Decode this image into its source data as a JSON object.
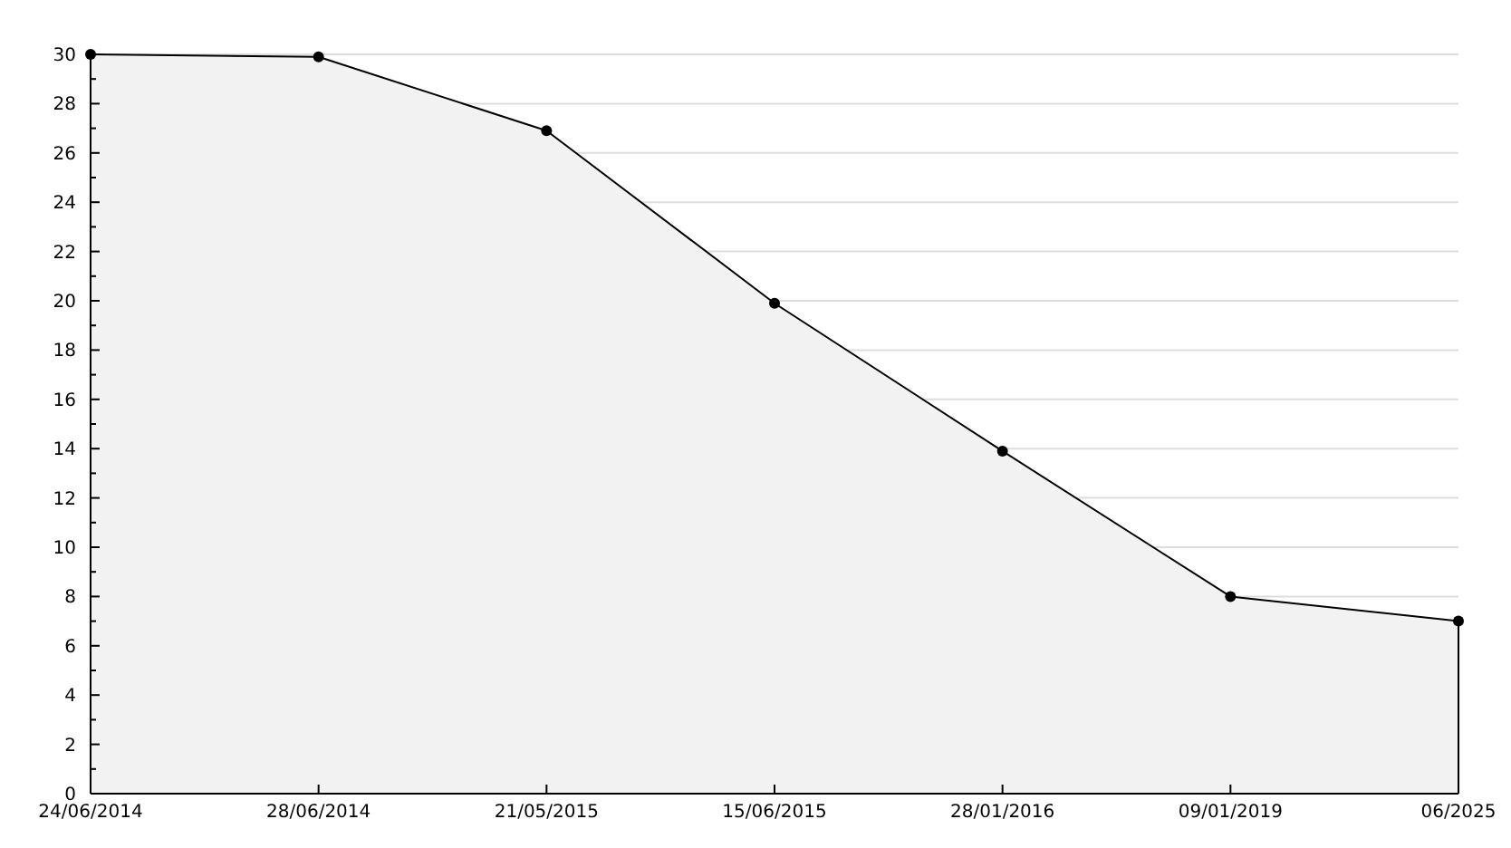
{
  "chart_data": {
    "type": "area",
    "categories": [
      "24/06/2014",
      "28/06/2014",
      "21/05/2015",
      "15/06/2015",
      "28/01/2016",
      "09/01/2019",
      "06/2025"
    ],
    "series": [
      {
        "color": "#000000",
        "values": [
          30,
          29.9,
          26.9,
          19.9,
          13.9,
          8,
          7
        ]
      }
    ],
    "ylim": [
      0,
      30
    ],
    "yticks": [
      0,
      {
        "value": 1,
        "label": null
      },
      2,
      {
        "value": 3,
        "label": null
      },
      4,
      {
        "value": 5,
        "label": null
      },
      6,
      {
        "value": 7,
        "label": null
      },
      8,
      {
        "value": 9,
        "label": null
      },
      10,
      {
        "value": 11,
        "label": null
      },
      12,
      {
        "value": 13,
        "label": null
      },
      14,
      {
        "value": 15,
        "label": null
      },
      16,
      {
        "value": 17,
        "label": null
      },
      18,
      {
        "value": 19,
        "label": null
      },
      20,
      {
        "value": 21,
        "label": null
      },
      22,
      {
        "value": 23,
        "label": null
      },
      24,
      {
        "value": 25,
        "label": null
      },
      26,
      {
        "value": 27,
        "label": null
      },
      28,
      {
        "value": 29,
        "label": null
      },
      30
    ],
    "grid": "y",
    "marker": "circle",
    "line_style": "solid"
  }
}
